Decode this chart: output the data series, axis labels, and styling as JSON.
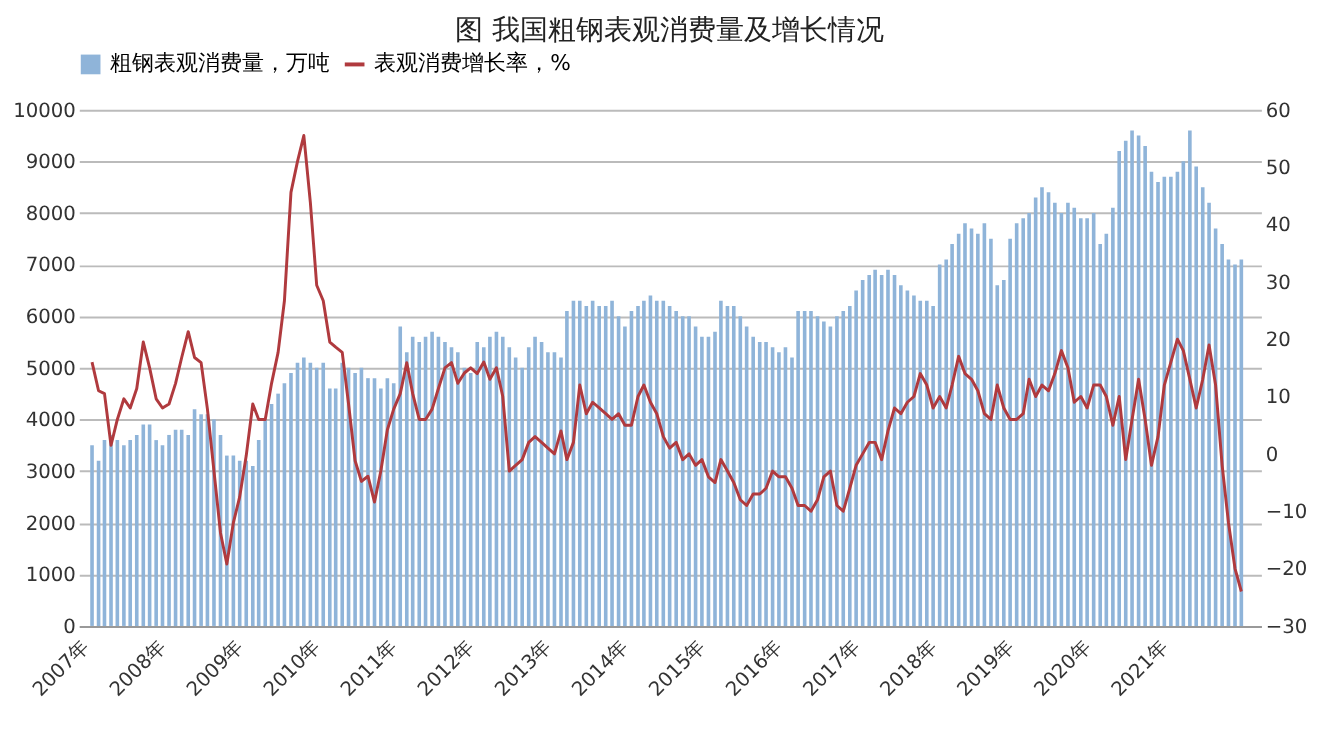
{
  "chart_data": {
    "type": "bar",
    "title": "图 我国粗钢表观消费量及增长情况",
    "x": [
      "2007-01",
      "2007-02",
      "2007-03",
      "2007-04",
      "2007-05",
      "2007-06",
      "2007-07",
      "2007-08",
      "2007-09",
      "2007-10",
      "2007-11",
      "2007-12",
      "2008-01",
      "2008-02",
      "2008-03",
      "2008-04",
      "2008-05",
      "2008-06",
      "2008-07",
      "2008-08",
      "2008-09",
      "2008-10",
      "2008-11",
      "2008-12",
      "2009-01",
      "2009-02",
      "2009-03",
      "2009-04",
      "2009-05",
      "2009-06",
      "2009-07",
      "2009-08",
      "2009-09",
      "2009-10",
      "2009-11",
      "2009-12",
      "2010-01",
      "2010-02",
      "2010-03",
      "2010-04",
      "2010-05",
      "2010-06",
      "2010-07",
      "2010-08",
      "2010-09",
      "2010-10",
      "2010-11",
      "2010-12",
      "2011-01",
      "2011-02",
      "2011-03",
      "2011-04",
      "2011-05",
      "2011-06",
      "2011-07",
      "2011-08",
      "2011-09",
      "2011-10",
      "2011-11",
      "2011-12",
      "2012-01",
      "2012-02",
      "2012-03",
      "2012-04",
      "2012-05",
      "2012-06",
      "2012-07",
      "2012-08",
      "2012-09",
      "2012-10",
      "2012-11",
      "2012-12",
      "2013-01",
      "2013-02",
      "2013-03",
      "2013-04",
      "2013-05",
      "2013-06",
      "2013-07",
      "2013-08",
      "2013-09",
      "2013-10",
      "2013-11",
      "2013-12",
      "2014-01",
      "2014-02",
      "2014-03",
      "2014-04",
      "2014-05",
      "2014-06",
      "2014-07",
      "2014-08",
      "2014-09",
      "2014-10",
      "2014-11",
      "2014-12",
      "2015-01",
      "2015-02",
      "2015-03",
      "2015-04",
      "2015-05",
      "2015-06",
      "2015-07",
      "2015-08",
      "2015-09",
      "2015-10",
      "2015-11",
      "2015-12",
      "2016-01",
      "2016-02",
      "2016-03",
      "2016-04",
      "2016-05",
      "2016-06",
      "2016-07",
      "2016-08",
      "2016-09",
      "2016-10",
      "2016-11",
      "2016-12",
      "2017-01",
      "2017-02",
      "2017-03",
      "2017-04",
      "2017-05",
      "2017-06",
      "2017-07",
      "2017-08",
      "2017-09",
      "2017-10",
      "2017-11",
      "2017-12",
      "2018-01",
      "2018-02",
      "2018-03",
      "2018-04",
      "2018-05",
      "2018-06",
      "2018-07",
      "2018-08",
      "2018-09",
      "2018-10",
      "2018-11",
      "2018-12",
      "2019-01",
      "2019-02",
      "2019-03",
      "2019-04",
      "2019-05",
      "2019-06",
      "2019-07",
      "2019-08",
      "2019-09",
      "2019-10",
      "2019-11",
      "2019-12",
      "2020-01",
      "2020-02",
      "2020-03",
      "2020-04",
      "2020-05",
      "2020-06",
      "2020-07",
      "2020-08",
      "2020-09",
      "2020-10",
      "2020-11",
      "2020-12",
      "2021-01",
      "2021-02",
      "2021-03",
      "2021-04",
      "2021-05",
      "2021-06",
      "2021-07",
      "2021-08",
      "2021-09",
      "2021-10",
      "2021-11",
      "2021-12"
    ],
    "xlim": [
      "2006-12-16",
      "2022-01-16"
    ],
    "xticks": [
      {
        "value": "2007-01",
        "label": "2007年"
      },
      {
        "value": "2008-01",
        "label": "2008年"
      },
      {
        "value": "2009-01",
        "label": "2009年"
      },
      {
        "value": "2010-01",
        "label": "2010年"
      },
      {
        "value": "2011-01",
        "label": "2011年"
      },
      {
        "value": "2012-01",
        "label": "2012年"
      },
      {
        "value": "2013-01",
        "label": "2013年"
      },
      {
        "value": "2014-01",
        "label": "2014年"
      },
      {
        "value": "2015-01",
        "label": "2015年"
      },
      {
        "value": "2016-01",
        "label": "2016年"
      },
      {
        "value": "2017-01",
        "label": "2017年"
      },
      {
        "value": "2018-01",
        "label": "2018年"
      },
      {
        "value": "2019-01",
        "label": "2019年"
      },
      {
        "value": "2020-01",
        "label": "2020年"
      },
      {
        "value": "2021-01",
        "label": "2021年"
      }
    ],
    "series": [
      {
        "name": "粗钢表观消费量，万吨",
        "color": "#8fb4d9",
        "values": [
          3500,
          3200,
          3600,
          3700,
          3600,
          3500,
          3600,
          3700,
          3900,
          3900,
          3600,
          3500,
          3700,
          3800,
          3800,
          3700,
          4200,
          4100,
          4100,
          4000,
          3700,
          3300,
          3300,
          3200,
          3200,
          3100,
          3600,
          4000,
          4300,
          4500,
          4700,
          4900,
          5100,
          5200,
          5100,
          5000,
          5100,
          4600,
          4600,
          5100,
          5000,
          4900,
          5000,
          4800,
          4800,
          4600,
          4800,
          4700,
          5800,
          5300,
          5600,
          5500,
          5600,
          5700,
          5600,
          5500,
          5400,
          5300,
          5000,
          4900,
          5500,
          5400,
          5600,
          5700,
          5600,
          5400,
          5200,
          5000,
          5400,
          5600,
          5500,
          5300,
          5300,
          5200,
          6100,
          6300,
          6300,
          6200,
          6300,
          6200,
          6200,
          6300,
          6000,
          5800,
          6100,
          6200,
          6300,
          6400,
          6300,
          6300,
          6200,
          6100,
          6000,
          6000,
          5800,
          5600,
          5600,
          5700,
          6300,
          6200,
          6200,
          6000,
          5800,
          5600,
          5500,
          5500,
          5400,
          5300,
          5400,
          5200,
          6100,
          6100,
          6100,
          6000,
          5900,
          5800,
          6000,
          6100,
          6200,
          6500,
          6700,
          6800,
          6900,
          6800,
          6900,
          6800,
          6600,
          6500,
          6400,
          6300,
          6300,
          6200,
          7000,
          7100,
          7400,
          7600,
          7800,
          7700,
          7600,
          7800,
          7500,
          6600,
          6700,
          7500,
          7800,
          7900,
          8000,
          8300,
          8500,
          8400,
          8200,
          8000,
          8200,
          8100,
          7900,
          7900,
          8000,
          7400,
          7600,
          8100,
          9200,
          9400,
          9600,
          9500,
          9300,
          8800,
          8600,
          8700,
          8700,
          8800,
          9000,
          9600,
          8900,
          8500,
          8200,
          7700,
          7400,
          7100,
          7000,
          7100
        ]
      },
      {
        "name": "表观消费增长率，%",
        "type": "line",
        "axis": "y2",
        "color": "#b03a3e",
        "values": [
          16,
          11,
          10.5,
          1.5,
          6,
          9.6,
          8,
          11.4,
          19.5,
          15,
          9.6,
          8,
          8.7,
          12.3,
          16.8,
          21.3,
          16.8,
          15.9,
          7.8,
          -3,
          -13.8,
          -19.2,
          -12,
          -7.5,
          -0.3,
          8.7,
          6,
          6,
          12.3,
          17.7,
          26.7,
          45.6,
          51,
          55.5,
          43.8,
          29.4,
          26.7,
          19.5,
          18.6,
          17.7,
          8.7,
          -1.2,
          -4.8,
          -3.9,
          -8.4,
          -3,
          4.2,
          7.8,
          10.5,
          15.9,
          10.5,
          6,
          6,
          7.8,
          11.4,
          15,
          15.9,
          12.3,
          14.1,
          15,
          14,
          16,
          13,
          15,
          10,
          -3,
          -2,
          -1,
          2,
          3,
          2,
          1,
          0,
          4,
          -1,
          2,
          12,
          7,
          9,
          8,
          7,
          6,
          7,
          5,
          5,
          10,
          12,
          9,
          7,
          3,
          1,
          2,
          -1,
          0,
          -2,
          -1,
          -4,
          -5,
          -1,
          -3,
          -5,
          -8,
          -9,
          -7,
          -7,
          -6,
          -3,
          -4,
          -4,
          -6,
          -9,
          -9,
          -10,
          -8,
          -4,
          -3,
          -9,
          -10,
          -6,
          -2,
          0,
          2,
          2,
          -1,
          4,
          8,
          7,
          9,
          10,
          14,
          12,
          8,
          10,
          8,
          12,
          17,
          14,
          13,
          11,
          7,
          6,
          12,
          8,
          6,
          6,
          7,
          13,
          10,
          12,
          11,
          14,
          18,
          15,
          9,
          10,
          8,
          12,
          12,
          10,
          5,
          10,
          -1,
          6,
          13,
          6,
          -2,
          3,
          12,
          16,
          20,
          18,
          13,
          8,
          13,
          19,
          12,
          -2,
          -12,
          -20,
          -24
        ]
      }
    ],
    "ylim": [
      0,
      10000
    ],
    "yticks": [
      0,
      1000,
      2000,
      3000,
      4000,
      5000,
      6000,
      7000,
      8000,
      9000,
      10000
    ],
    "y2lim": [
      -30,
      60
    ],
    "y2ticks": [
      -30,
      -20,
      -10,
      0,
      10,
      20,
      30,
      40,
      50,
      60
    ],
    "grid": "y",
    "legend": "top",
    "marker": "none",
    "line_style": "solid"
  }
}
